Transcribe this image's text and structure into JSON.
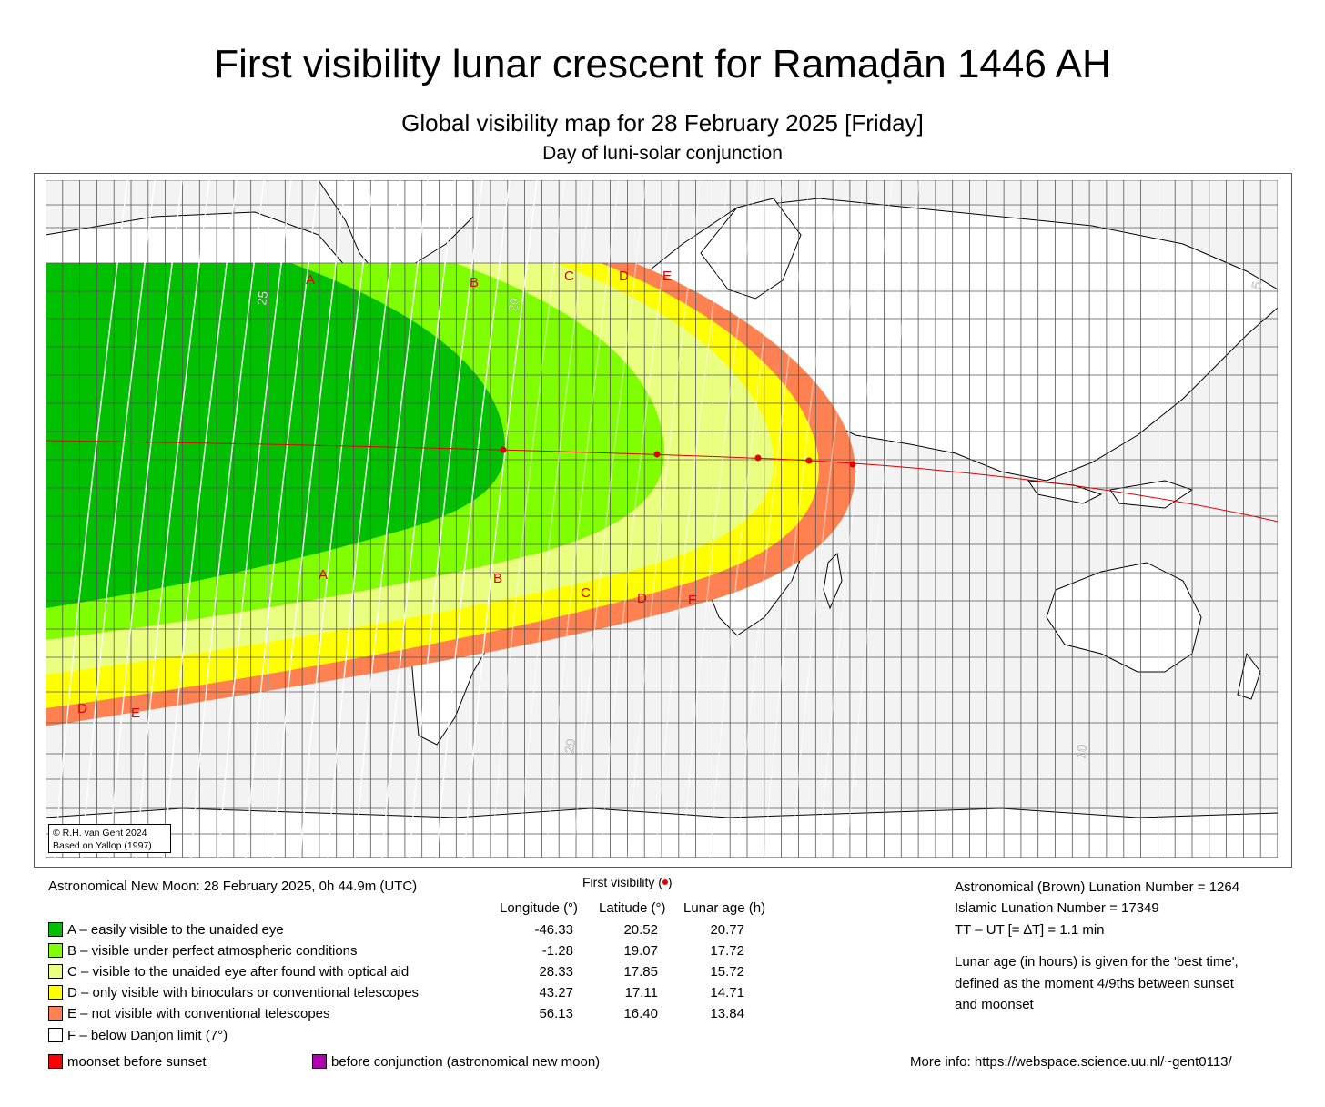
{
  "title": "First visibility lunar crescent for Ramaḍān 1446 AH",
  "subtitle": "Global visibility map for 28 February 2025 [Friday]",
  "subtitle2": "Day of luni-solar conjunction",
  "credit": {
    "line1": "© R.H. van Gent 2024",
    "line2": "Based on Yallop (1997)"
  },
  "new_moon": "Astronomical New Moon: 28 February 2025, 0h 44.9m (UTC)",
  "first_visibility": {
    "label_prefix": "First visibility (",
    "label_suffix": ")",
    "dot_color": "#e00000",
    "headers": {
      "longitude": "Longitude (°)",
      "latitude": "Latitude (°)",
      "lunar_age": "Lunar age (h)"
    },
    "rows": [
      {
        "longitude": "-46.33",
        "latitude": "20.52",
        "lunar_age": "20.77"
      },
      {
        "longitude": "-1.28",
        "latitude": "19.07",
        "lunar_age": "17.72"
      },
      {
        "longitude": "28.33",
        "latitude": "17.85",
        "lunar_age": "15.72"
      },
      {
        "longitude": "43.27",
        "latitude": "17.11",
        "lunar_age": "14.71"
      },
      {
        "longitude": "56.13",
        "latitude": "16.40",
        "lunar_age": "13.84"
      }
    ]
  },
  "legend": [
    {
      "label": "A – easily visible to the unaided eye",
      "color": "#00c000"
    },
    {
      "label": "B – visible under perfect atmospheric conditions",
      "color": "#80ff00"
    },
    {
      "label": "C – visible to the unaided eye after found with optical aid",
      "color": "#eaff80"
    },
    {
      "label": "D – only visible with binoculars or conventional telescopes",
      "color": "#ffff00"
    },
    {
      "label": "E – not visible with conventional telescopes",
      "color": "#ff8050"
    },
    {
      "label": "F – below Danjon limit (7°)",
      "color": "#ffffff"
    }
  ],
  "extra_legend": [
    {
      "label": "moonset before sunset",
      "color": "#ff0000"
    },
    {
      "label": "before conjunction (astronomical new moon)",
      "color": "#b000b0"
    }
  ],
  "lunation": {
    "brown": "Astronomical (Brown) Lunation Number = 1264",
    "islamic": "Islamic Lunation Number = 17349",
    "delta_t": "TT – UT [= ∆T] = 1.1 min"
  },
  "lunar_age_note": {
    "line1": "Lunar age (in hours) is given for the 'best time',",
    "line2": "defined as the moment 4/9ths between sunset",
    "line3": "and moonset"
  },
  "more_info": "More info: https://webspace.science.uu.nl/~gent0113/",
  "zone_labels": {
    "north": [
      "A",
      "B",
      "C",
      "D",
      "E"
    ],
    "south": [
      "A",
      "B",
      "C",
      "D",
      "E"
    ],
    "southwest": [
      "D",
      "E"
    ]
  },
  "contour_labels": [
    "25",
    "20",
    "30",
    "20",
    "10",
    "5"
  ],
  "icon_names": {
    "map": "world-map-icon",
    "dot": "first-visibility-dot-icon"
  }
}
